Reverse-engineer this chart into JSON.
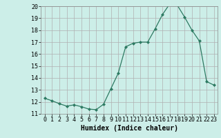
{
  "title": "",
  "xlabel": "Humidex (Indice chaleur)",
  "ylabel": "",
  "x": [
    0,
    1,
    2,
    3,
    4,
    5,
    6,
    7,
    8,
    9,
    10,
    11,
    12,
    13,
    14,
    15,
    16,
    17,
    18,
    19,
    20,
    21,
    22,
    23
  ],
  "y": [
    12.3,
    12.1,
    11.85,
    11.65,
    11.75,
    11.6,
    11.4,
    11.35,
    11.8,
    13.1,
    14.4,
    16.6,
    16.9,
    17.0,
    17.0,
    18.1,
    19.3,
    20.2,
    20.1,
    19.1,
    18.0,
    17.1,
    13.7,
    13.4
  ],
  "line_color": "#2d7a62",
  "marker_color": "#2d7a62",
  "bg_color": "#cceee8",
  "grid_color_major": "#b0b0b0",
  "grid_color_minor": "#d0d0d0",
  "ylim": [
    11,
    20
  ],
  "xlim": [
    -0.5,
    23.5
  ],
  "yticks": [
    11,
    12,
    13,
    14,
    15,
    16,
    17,
    18,
    19,
    20
  ],
  "xticks": [
    0,
    1,
    2,
    3,
    4,
    5,
    6,
    7,
    8,
    9,
    10,
    11,
    12,
    13,
    14,
    15,
    16,
    17,
    18,
    19,
    20,
    21,
    22,
    23
  ],
  "tick_fontsize": 6,
  "xlabel_fontsize": 7
}
